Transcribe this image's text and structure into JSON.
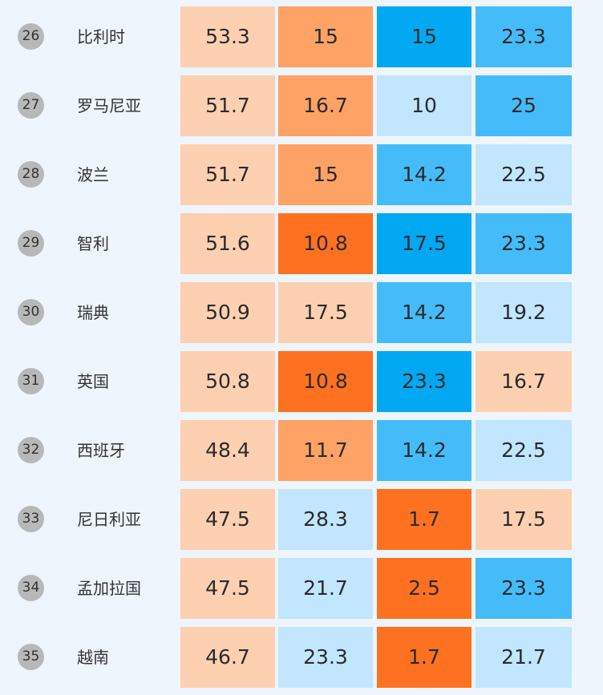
{
  "chart_data": {
    "type": "heatmap",
    "rows": [
      {
        "rank": "26",
        "country": "比利时",
        "values": [
          "53.3",
          "15",
          "15",
          "23.3"
        ],
        "colors": [
          "#fdd0b2",
          "#fea265",
          "#03a8f3",
          "#44bcfa"
        ]
      },
      {
        "rank": "27",
        "country": "罗马尼亚",
        "values": [
          "51.7",
          "16.7",
          "10",
          "25"
        ],
        "colors": [
          "#fdd0b2",
          "#fea265",
          "#c1e6fd",
          "#44bcfa"
        ]
      },
      {
        "rank": "28",
        "country": "波兰",
        "values": [
          "51.7",
          "15",
          "14.2",
          "22.5"
        ],
        "colors": [
          "#fdd0b2",
          "#fea265",
          "#44bcfa",
          "#c1e6fd"
        ]
      },
      {
        "rank": "29",
        "country": "智利",
        "values": [
          "51.6",
          "10.8",
          "17.5",
          "23.3"
        ],
        "colors": [
          "#fdd0b2",
          "#fe7121",
          "#03a8f3",
          "#44bcfa"
        ]
      },
      {
        "rank": "30",
        "country": "瑞典",
        "values": [
          "50.9",
          "17.5",
          "14.2",
          "19.2"
        ],
        "colors": [
          "#fdd0b2",
          "#fdd0b2",
          "#44bcfa",
          "#c1e6fd"
        ]
      },
      {
        "rank": "31",
        "country": "英国",
        "values": [
          "50.8",
          "10.8",
          "23.3",
          "16.7"
        ],
        "colors": [
          "#fdd0b2",
          "#fe7121",
          "#03a8f3",
          "#fdd0b2"
        ]
      },
      {
        "rank": "32",
        "country": "西班牙",
        "values": [
          "48.4",
          "11.7",
          "14.2",
          "22.5"
        ],
        "colors": [
          "#fdd0b2",
          "#fea265",
          "#44bcfa",
          "#c1e6fd"
        ]
      },
      {
        "rank": "33",
        "country": "尼日利亚",
        "values": [
          "47.5",
          "28.3",
          "1.7",
          "17.5"
        ],
        "colors": [
          "#fdd0b2",
          "#c1e6fd",
          "#fe7121",
          "#fdd0b2"
        ]
      },
      {
        "rank": "34",
        "country": "孟加拉国",
        "values": [
          "47.5",
          "21.7",
          "2.5",
          "23.3"
        ],
        "colors": [
          "#fdd0b2",
          "#c1e6fd",
          "#fe7121",
          "#44bcfa"
        ]
      },
      {
        "rank": "35",
        "country": "越南",
        "values": [
          "46.7",
          "23.3",
          "1.7",
          "21.7"
        ],
        "colors": [
          "#fdd0b2",
          "#c1e6fd",
          "#fe7121",
          "#c1e6fd"
        ]
      }
    ]
  }
}
